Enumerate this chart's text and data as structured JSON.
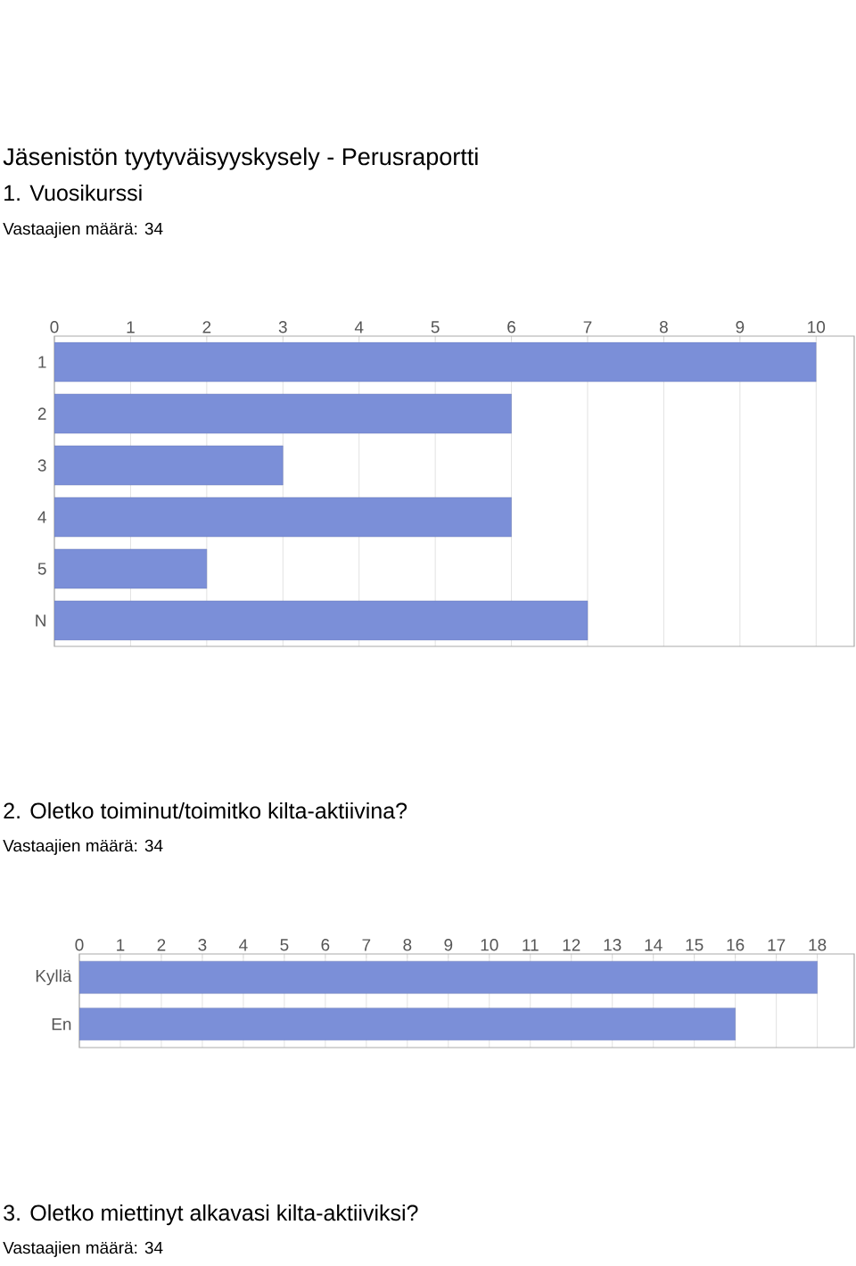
{
  "chart_data": [
    {
      "type": "bar",
      "orientation": "horizontal",
      "title": "Jäsenistön tyytyväisyyskysely - Perusraportti",
      "subtitle": "1. Vuosikurssi",
      "annotations": [
        "Vastaajien määrä: 34"
      ],
      "categories": [
        "1",
        "2",
        "3",
        "4",
        "5",
        "N"
      ],
      "values": [
        10,
        6,
        3,
        6,
        2,
        7
      ],
      "color": "#7b8fd8",
      "xlim": [
        0,
        10.5
      ],
      "xticks": [
        0,
        1,
        2,
        3,
        4,
        5,
        6,
        7,
        8,
        9,
        10
      ],
      "grid": "x"
    },
    {
      "type": "bar",
      "orientation": "horizontal",
      "title": "2. Oletko toiminut/toimitko kilta-aktiivina?",
      "annotations": [
        "Vastaajien määrä: 34"
      ],
      "categories": [
        "Kyllä",
        "En"
      ],
      "values": [
        18,
        16
      ],
      "color": "#7b8fd8",
      "xlim": [
        0,
        18.9
      ],
      "xticks": [
        0,
        1,
        2,
        3,
        4,
        5,
        6,
        7,
        8,
        9,
        10,
        11,
        12,
        13,
        14,
        15,
        16,
        17,
        18
      ],
      "grid": "x"
    },
    {
      "type": "other",
      "title": "3. Oletko miettinyt alkavasi kilta-aktiiviksi?",
      "annotations": [
        "Vastaajien määrä: 34"
      ]
    }
  ]
}
